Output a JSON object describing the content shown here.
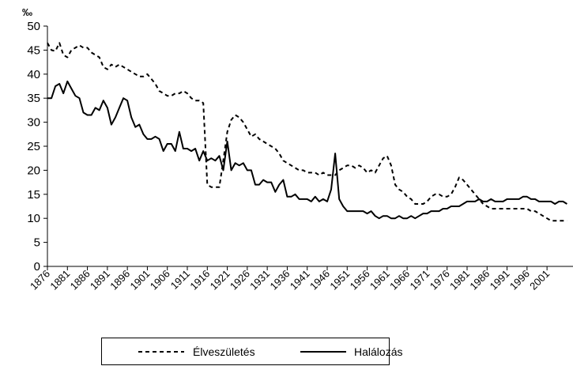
{
  "chart_data": {
    "type": "line",
    "y_label": "‰",
    "x": [
      1876,
      1877,
      1878,
      1879,
      1880,
      1881,
      1882,
      1883,
      1884,
      1885,
      1886,
      1887,
      1888,
      1889,
      1890,
      1891,
      1892,
      1893,
      1894,
      1895,
      1896,
      1897,
      1898,
      1899,
      1900,
      1901,
      1902,
      1903,
      1904,
      1905,
      1906,
      1907,
      1908,
      1909,
      1910,
      1911,
      1912,
      1913,
      1914,
      1915,
      1916,
      1917,
      1918,
      1919,
      1920,
      1921,
      1922,
      1923,
      1924,
      1925,
      1926,
      1927,
      1928,
      1929,
      1930,
      1931,
      1932,
      1933,
      1934,
      1935,
      1936,
      1937,
      1938,
      1939,
      1940,
      1941,
      1942,
      1943,
      1944,
      1945,
      1946,
      1947,
      1948,
      1949,
      1950,
      1951,
      1952,
      1953,
      1954,
      1955,
      1956,
      1957,
      1958,
      1959,
      1960,
      1961,
      1962,
      1963,
      1964,
      1965,
      1966,
      1967,
      1968,
      1969,
      1970,
      1971,
      1972,
      1973,
      1974,
      1975,
      1976,
      1977,
      1978,
      1979,
      1980,
      1981,
      1982,
      1983,
      1984,
      1985,
      1986,
      1987,
      1988,
      1989,
      1990,
      1991,
      1992,
      1993,
      1994,
      1995,
      1996,
      1997,
      1998,
      1999,
      2000,
      2001,
      2002,
      2003,
      2004,
      2005,
      2006
    ],
    "series": [
      {
        "name": "Élveszületés",
        "color": "#000000",
        "dash": true,
        "values": [
          46.5,
          45,
          44.8,
          46.5,
          44,
          43.5,
          45,
          45.5,
          46,
          45.5,
          45.5,
          44.5,
          44,
          43.5,
          41.5,
          41,
          42,
          41.5,
          42,
          41.5,
          41,
          40.5,
          40,
          39.5,
          39.5,
          40,
          39,
          38,
          36.5,
          36,
          35.5,
          35.5,
          36,
          36,
          36.5,
          36,
          35,
          34.5,
          34.5,
          34,
          17,
          16.5,
          16.5,
          16.5,
          22,
          28,
          30.5,
          31.5,
          31,
          30,
          28.5,
          27,
          27.5,
          26.5,
          26,
          25.5,
          25,
          24.5,
          23.5,
          22,
          21.5,
          21,
          20.5,
          20,
          20,
          19.5,
          19.5,
          19.5,
          19,
          19.5,
          19,
          19,
          19,
          20,
          20.5,
          21,
          21,
          20.5,
          21,
          20.5,
          19.5,
          20,
          19.5,
          21,
          22.5,
          23,
          21,
          17,
          16,
          15.5,
          14.5,
          14,
          13,
          13,
          13,
          13.5,
          14.5,
          15,
          15,
          14.5,
          14.5,
          15,
          16.5,
          18.5,
          18,
          17,
          16,
          15,
          14,
          13,
          12.5,
          12,
          12,
          12,
          12,
          12,
          12,
          12,
          12,
          12,
          12,
          11.5,
          11.5,
          11,
          10.5,
          10,
          9.5,
          9.5,
          9.5,
          9.5,
          9.5
        ]
      },
      {
        "name": "Halálozás",
        "color": "#000000",
        "dash": false,
        "values": [
          35,
          35,
          37.5,
          38,
          36,
          38.5,
          37,
          35.5,
          35,
          32,
          31.5,
          31.5,
          33,
          32.5,
          34.5,
          33,
          29.5,
          31,
          33,
          35,
          34.5,
          31,
          29,
          29.5,
          27.5,
          26.5,
          26.5,
          27,
          26.5,
          24,
          25.5,
          25.5,
          24,
          28,
          24.5,
          24.5,
          24,
          24.5,
          22,
          24,
          22,
          22.5,
          22,
          23,
          20,
          26,
          20,
          21.5,
          21,
          21.5,
          20,
          20,
          17,
          17,
          18,
          17.5,
          17.5,
          15.5,
          17,
          18,
          14.5,
          14.5,
          15,
          14,
          14,
          14,
          13.5,
          14.5,
          13.5,
          14,
          13.5,
          16,
          23.5,
          14,
          12.5,
          11.5,
          11.5,
          11.5,
          11.5,
          11.5,
          11,
          11.5,
          10.5,
          10,
          10.5,
          10.5,
          10,
          10,
          10.5,
          10,
          10,
          10.5,
          10,
          10.5,
          11,
          11,
          11.5,
          11.5,
          11.5,
          12,
          12,
          12.5,
          12.5,
          12.5,
          13,
          13.5,
          13.5,
          13.5,
          14,
          13.5,
          13.5,
          14,
          13.5,
          13.5,
          13.5,
          14,
          14,
          14,
          14,
          14.5,
          14.5,
          14,
          14,
          13.5,
          13.5,
          13.5,
          13.5,
          13,
          13.5,
          13.5,
          13
        ]
      }
    ],
    "xlim": [
      1876,
      2007.5
    ],
    "xticks": [
      1876,
      1881,
      1886,
      1891,
      1896,
      1901,
      1906,
      1911,
      1916,
      1921,
      1926,
      1931,
      1936,
      1941,
      1946,
      1951,
      1956,
      1961,
      1966,
      1971,
      1976,
      1981,
      1986,
      1991,
      1996,
      2001
    ],
    "ylim": [
      0,
      50
    ],
    "yticks": [
      0,
      5,
      10,
      15,
      20,
      25,
      30,
      35,
      40,
      45,
      50
    ],
    "grid": false,
    "legend": "bottom"
  }
}
